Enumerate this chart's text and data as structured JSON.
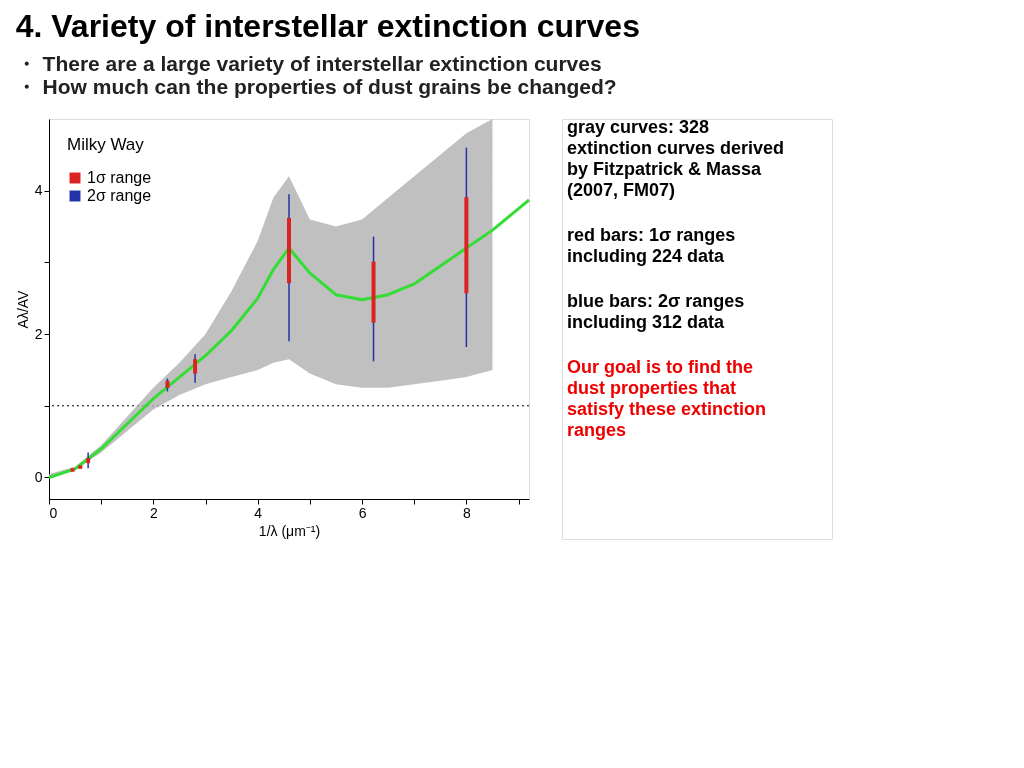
{
  "chart_data": {
    "type": "line",
    "title": "4. Variety of interstellar extinction curves",
    "subtitle": "・ There are a large variety of interstellar extinction curves\n・ How much can the properties of dust grains be changed?",
    "xlabel": "1/λ (μm⁻¹)",
    "ylabel": "Aλ/AV",
    "legend_title": "Milky Way",
    "xlim": [
      0,
      9.2
    ],
    "ylim": [
      -0.3,
      5
    ],
    "xticks": [
      0,
      {
        "value": 1,
        "label": null
      },
      2,
      {
        "value": 3,
        "label": null
      },
      4,
      {
        "value": 5,
        "label": null
      },
      6,
      {
        "value": 7,
        "label": null
      },
      8,
      {
        "value": 9,
        "label": null
      }
    ],
    "yticks": [
      0,
      {
        "value": 1,
        "label": null
      },
      2,
      {
        "value": 3,
        "label": null
      },
      4
    ],
    "grid": false,
    "legend": "top left",
    "ref_lines": [
      {
        "axis": "y",
        "value": 1,
        "label": null,
        "color": "#000000",
        "line_style": "dotted"
      }
    ],
    "series": [
      {
        "color": "#33dd33",
        "line_style": "solid",
        "marker": "none",
        "x": [
          0,
          0.5,
          1,
          1.5,
          2,
          2.5,
          3,
          3.5,
          4,
          4.3,
          4.6,
          5,
          5.5,
          6,
          6.5,
          7,
          7.5,
          8,
          8.5,
          9,
          9.2
        ],
        "values": [
          0.0,
          0.12,
          0.4,
          0.75,
          1.1,
          1.4,
          1.7,
          2.05,
          2.5,
          2.9,
          3.2,
          2.85,
          2.55,
          2.48,
          2.55,
          2.7,
          2.95,
          3.2,
          3.45,
          3.75,
          3.87
        ],
        "lower": [
          0.0,
          0.1,
          0.35,
          0.65,
          0.95,
          1.15,
          1.3,
          1.4,
          1.5,
          1.6,
          1.65,
          1.45,
          1.3,
          1.25,
          1.25,
          1.3,
          1.35,
          1.4,
          1.5,
          null,
          null
        ],
        "upper": [
          0.05,
          0.15,
          0.45,
          0.85,
          1.25,
          1.6,
          2.0,
          2.6,
          3.3,
          3.9,
          4.2,
          3.6,
          3.5,
          3.6,
          3.9,
          4.2,
          4.5,
          4.8,
          5.0,
          null,
          null
        ]
      },
      {
        "type": "bar",
        "name": "1σ range",
        "color": "#dd2222",
        "x": [
          0.45,
          0.6,
          0.75,
          2.27,
          2.8,
          4.6,
          6.22,
          8
        ],
        "base": [
          0.08,
          0.12,
          0.2,
          1.25,
          1.45,
          2.71,
          2.16,
          2.57
        ],
        "values": [
          0.05,
          0.05,
          0.07,
          0.1,
          0.2,
          0.91,
          0.85,
          1.34
        ]
      },
      {
        "type": "bar",
        "name": "2σ range",
        "color": "#2233aa",
        "x": [
          0.75,
          2.27,
          2.8,
          4.6,
          6.22,
          8
        ],
        "base": [
          0.13,
          1.2,
          1.32,
          1.9,
          1.62,
          1.82
        ],
        "values": [
          0.22,
          0.18,
          0.4,
          2.05,
          1.74,
          2.78
        ]
      }
    ],
    "annotations": [
      "gray curves: 328 extinction curves derived by Fitzpatrick & Massa (2007, FM07)",
      "red bars: 1σ ranges including 224 data",
      "blue bars: 2σ ranges including 312 data",
      "Our goal is to find the dust properties that satisfy these extinction ranges"
    ]
  }
}
